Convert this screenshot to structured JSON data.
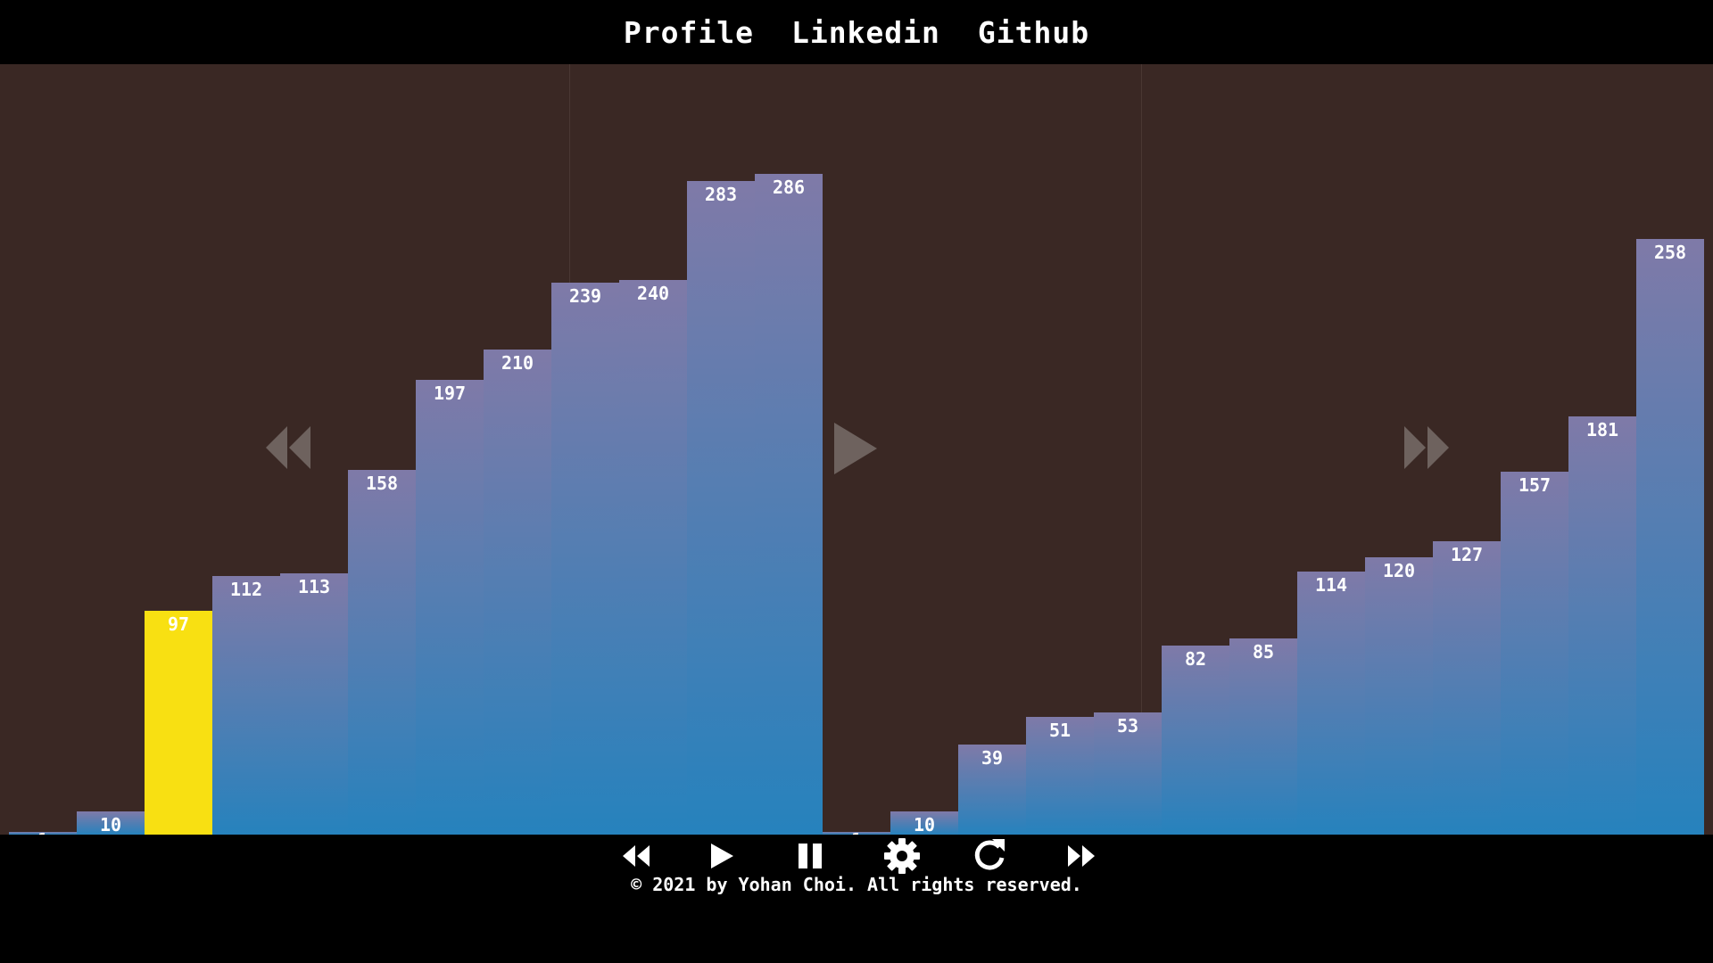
{
  "nav": {
    "profile_label": "Profile",
    "linkedin_label": "Linkedin",
    "github_label": "Github"
  },
  "visualizer": {
    "left_panel": {
      "values": [
        1,
        10,
        97,
        112,
        113,
        158,
        197,
        210,
        239,
        240,
        283,
        286
      ],
      "highlight_index": 2
    },
    "right_panel": {
      "values": [
        1,
        10,
        39,
        51,
        53,
        82,
        85,
        114,
        120,
        127,
        157,
        181,
        258
      ]
    }
  },
  "overlay_icons": [
    "rewind-icon",
    "play-icon",
    "fast-forward-icon"
  ],
  "controls": [
    "rewind-icon",
    "play-icon",
    "pause-icon",
    "gear-icon",
    "refresh-icon",
    "fast-forward-icon"
  ],
  "colors": {
    "bar_top": "#7f7aa8",
    "bar_bottom": "#2682bd",
    "highlight": "#f8e012",
    "stage_background": "#3a2824"
  },
  "footer": {
    "copyright": "© 2021 by Yohan Choi. All rights reserved."
  }
}
